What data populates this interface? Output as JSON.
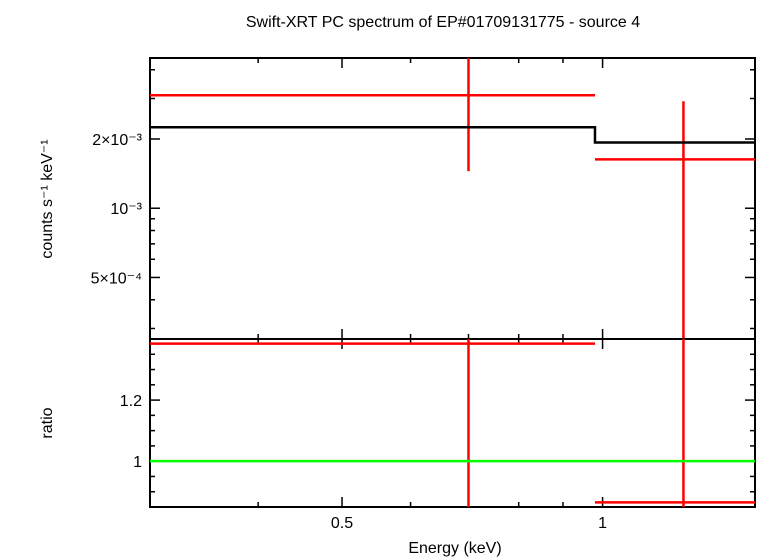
{
  "chart_data": [
    {
      "type": "line",
      "title": "Swift-XRT PC spectrum of EP#01709131775 - source 4",
      "xlabel": "",
      "ylabel": "counts s⁻¹ keV⁻¹",
      "xscale": "log",
      "yscale": "log",
      "xlim": [
        0.3,
        1.5
      ],
      "ylim": [
        0.00027,
        0.0045
      ],
      "ytick_labels": [
        "5×10⁻⁴",
        "10⁻³",
        "2×10⁻³"
      ],
      "ytick_values": [
        0.0005,
        0.001,
        0.002
      ],
      "series": [
        {
          "kind": "data",
          "color": "#ff0000",
          "points": [
            {
              "x": 0.7,
              "xlo": 0.3,
              "xhi": 0.98,
              "y": 0.0031,
              "ylo": 0.00145,
              "yhi": 0.0045
            },
            {
              "x": 1.24,
              "xlo": 0.98,
              "xhi": 1.5,
              "y": 0.00163,
              "ylo": 0.00027,
              "yhi": 0.00292
            }
          ]
        },
        {
          "kind": "model",
          "color": "#000000",
          "steps": [
            {
              "xlo": 0.3,
              "xhi": 0.98,
              "y": 0.00225
            },
            {
              "xlo": 0.98,
              "xhi": 1.5,
              "y": 0.00193
            }
          ]
        }
      ]
    },
    {
      "type": "line",
      "title": "",
      "xlabel": "Energy (keV)",
      "ylabel": "ratio",
      "xscale": "log",
      "xlim": [
        0.3,
        1.5
      ],
      "ylim": [
        0.85,
        1.4
      ],
      "xtick_labels": [
        "0.5",
        "1"
      ],
      "xtick_values": [
        0.5,
        1
      ],
      "ytick_labels": [
        "1",
        "1.2"
      ],
      "ytick_values": [
        1,
        1.2
      ],
      "series": [
        {
          "kind": "data",
          "color": "#ff0000",
          "points": [
            {
              "x": 0.7,
              "xlo": 0.3,
              "xhi": 0.98,
              "y": 1.385,
              "ylo": 0.85,
              "yhi": 1.4
            },
            {
              "x": 1.24,
              "xlo": 0.98,
              "xhi": 1.5,
              "y": 0.865,
              "ylo": 0.85,
              "yhi": 1.4
            }
          ]
        },
        {
          "kind": "reference",
          "color": "#00ff00",
          "y": 1
        }
      ]
    }
  ]
}
